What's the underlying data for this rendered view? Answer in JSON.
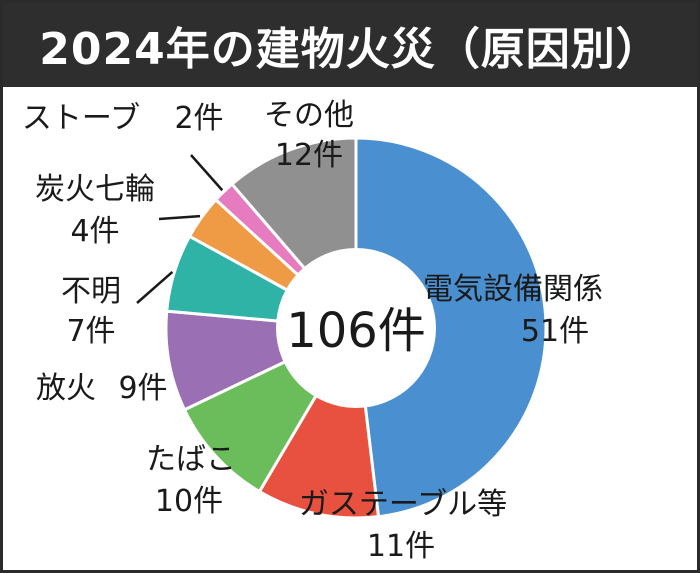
{
  "chart_data": {
    "type": "pie",
    "title": "2024年の建物火災（原因別）",
    "center_label": "106件",
    "slices": [
      {
        "name": "電気設備関係",
        "value": 51,
        "count_label": "51件",
        "color": "#4a90d0"
      },
      {
        "name": "ガステーブル等",
        "value": 11,
        "count_label": "11件",
        "color": "#e8513f"
      },
      {
        "name": "たばこ",
        "value": 10,
        "count_label": "10件",
        "color": "#6bbd5b"
      },
      {
        "name": "放火",
        "value": 9,
        "count_label": "9件",
        "color": "#9b6fb4"
      },
      {
        "name": "不明",
        "value": 7,
        "count_label": "7件",
        "color": "#2fb3a6"
      },
      {
        "name": "炭火七輪",
        "value": 4,
        "count_label": "4件",
        "color": "#ef9a45"
      },
      {
        "name": "ストーブ",
        "value": 2,
        "count_label": "2件",
        "color": "#e67bbf"
      },
      {
        "name": "その他",
        "value": 12,
        "count_label": "12件",
        "color": "#909090"
      }
    ]
  }
}
